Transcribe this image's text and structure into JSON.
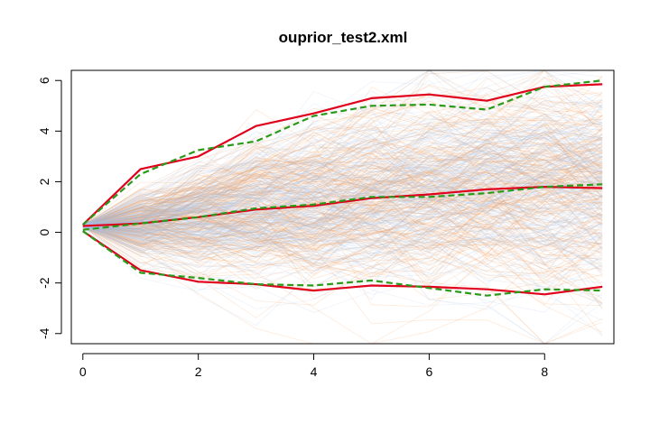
{
  "chart_data": {
    "type": "line",
    "title": "ouprior_test2.xml",
    "xlabel": "",
    "ylabel": "",
    "xlim": [
      -0.2,
      9.2
    ],
    "ylim": [
      -4.4,
      6.4
    ],
    "x_ticks": [
      0,
      2,
      4,
      6,
      8
    ],
    "y_ticks": [
      -4,
      -2,
      0,
      2,
      4,
      6
    ],
    "x": [
      0,
      1,
      2,
      3,
      4,
      5,
      6,
      7,
      8,
      9
    ],
    "series": [
      {
        "name": "",
        "role": "upper",
        "color": "#e0001b",
        "dash": "solid",
        "values": [
          0.3,
          2.5,
          3.0,
          4.2,
          4.7,
          5.3,
          5.45,
          5.2,
          5.75,
          5.85
        ]
      },
      {
        "name": "",
        "role": "median",
        "color": "#e0001b",
        "dash": "solid",
        "values": [
          0.25,
          0.35,
          0.6,
          0.9,
          1.05,
          1.35,
          1.5,
          1.7,
          1.8,
          1.75
        ]
      },
      {
        "name": "",
        "role": "lower",
        "color": "#e0001b",
        "dash": "solid",
        "values": [
          0.05,
          -1.5,
          -1.95,
          -2.05,
          -2.3,
          -2.1,
          -2.15,
          -2.25,
          -2.45,
          -2.15
        ]
      },
      {
        "name": "",
        "role": "upper",
        "color": "#2a9a1a",
        "dash": "dashed",
        "values": [
          0.3,
          2.3,
          3.25,
          3.6,
          4.6,
          5.0,
          5.05,
          4.85,
          5.75,
          6.0
        ]
      },
      {
        "name": "",
        "role": "median",
        "color": "#2a9a1a",
        "dash": "dashed",
        "values": [
          0.1,
          0.35,
          0.6,
          0.95,
          1.1,
          1.4,
          1.4,
          1.55,
          1.8,
          1.9
        ]
      },
      {
        "name": "",
        "role": "lower",
        "color": "#2a9a1a",
        "dash": "dashed",
        "values": [
          0.05,
          -1.6,
          -1.8,
          -2.05,
          -2.1,
          -1.9,
          -2.2,
          -2.5,
          -2.25,
          -2.3
        ]
      }
    ],
    "background_paths": {
      "colors": [
        "#f07a22",
        "#a9c4e4"
      ],
      "count_per_color": 220,
      "description_note": ""
    },
    "grid": false,
    "legend": "none"
  }
}
